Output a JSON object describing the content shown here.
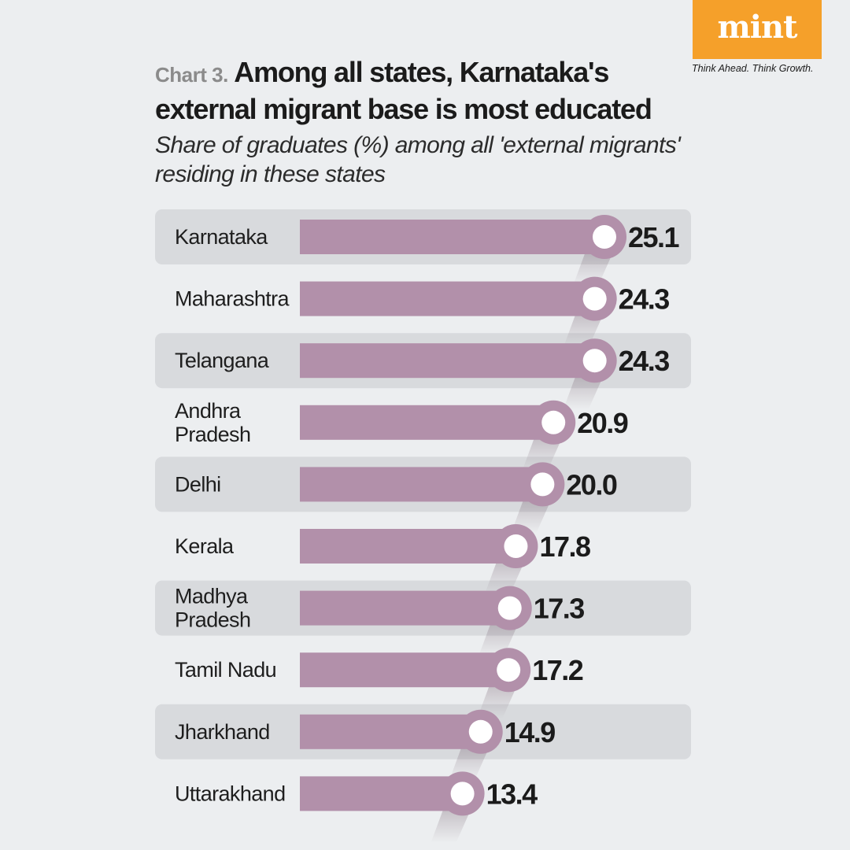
{
  "brand": {
    "logo_text": "mint",
    "tagline": "Think Ahead. Think Growth.",
    "color": "#f5a02a"
  },
  "header": {
    "chart_number": "Chart 3.",
    "title": "Among all states, Karnataka's external migrant base is most educated",
    "subtitle": "Share of graduates (%) among all 'external migrants' residing in these states"
  },
  "colors": {
    "bar": "#b290aa",
    "marker_ring": "#b290aa",
    "marker_center": "#ffffff",
    "band": "#d8dadd",
    "background": "#eceef0"
  },
  "chart_data": {
    "type": "bar",
    "orientation": "horizontal",
    "title": "Among all states, Karnataka's external migrant base is most educated",
    "subtitle": "Share of graduates (%) among all 'external migrants' residing in these states",
    "categories": [
      "Karnataka",
      "Maharashtra",
      "Telangana",
      "Andhra Pradesh",
      "Delhi",
      "Kerala",
      "Madhya Pradesh",
      "Tamil Nadu",
      "Jharkhand",
      "Uttarakhand"
    ],
    "category_lines": [
      [
        "Karnataka"
      ],
      [
        "Maharashtra"
      ],
      [
        "Telangana"
      ],
      [
        "Andhra",
        "Pradesh"
      ],
      [
        "Delhi"
      ],
      [
        "Kerala"
      ],
      [
        "Madhya",
        "Pradesh"
      ],
      [
        "Tamil Nadu"
      ],
      [
        "Jharkhand"
      ],
      [
        "Uttarakhand"
      ]
    ],
    "values": [
      25.1,
      24.3,
      24.3,
      20.9,
      20.0,
      17.8,
      17.3,
      17.2,
      14.9,
      13.4
    ],
    "value_labels": [
      "25.1",
      "24.3",
      "24.3",
      "20.9",
      "20.0",
      "17.8",
      "17.3",
      "17.2",
      "14.9",
      "13.4"
    ],
    "xlim": [
      0,
      25.1
    ],
    "grid": false,
    "legend": "none",
    "xlabel": "",
    "ylabel": ""
  }
}
